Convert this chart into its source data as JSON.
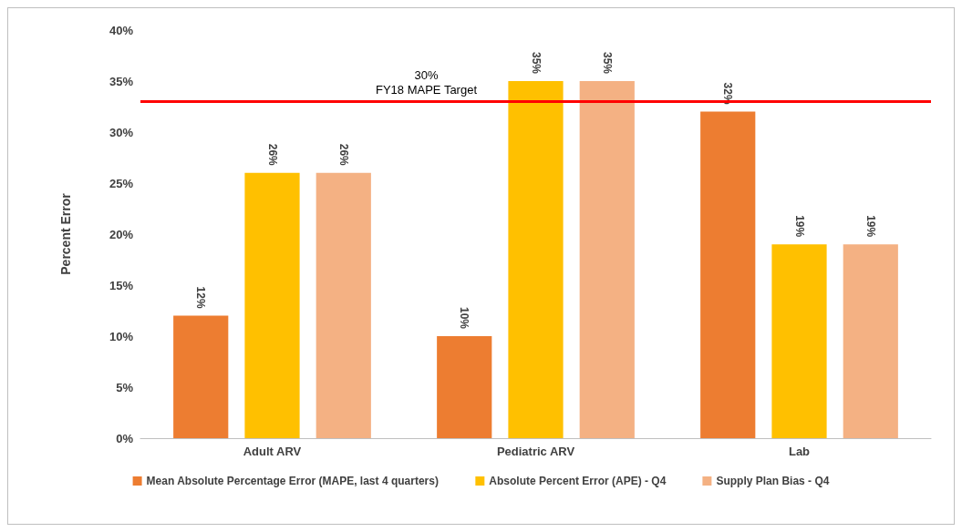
{
  "chart_data": {
    "type": "bar",
    "ylabel": "Percent Error",
    "categories": [
      "Adult ARV",
      "Pediatric ARV",
      "Lab"
    ],
    "series": [
      {
        "name": "Mean Absolute Percentage Error (MAPE, last 4 quarters)",
        "color": "#ed7d31",
        "values": [
          12,
          10,
          32
        ],
        "value_labels": [
          "12%",
          "10%",
          "32%"
        ]
      },
      {
        "name": "Absolute Percent Error (APE) - Q4",
        "color": "#ffc000",
        "values": [
          26,
          35,
          19
        ],
        "value_labels": [
          "26%",
          "35%",
          "19%"
        ]
      },
      {
        "name": "Supply Plan Bias - Q4",
        "color": "#f4b183",
        "values": [
          26,
          35,
          19
        ],
        "value_labels": [
          "26%",
          "35%",
          "19%"
        ]
      }
    ],
    "ylim": [
      0,
      40
    ],
    "yticks": [
      {
        "value": 0,
        "label": "0%"
      },
      {
        "value": 5,
        "label": "5%"
      },
      {
        "value": 10,
        "label": "10%"
      },
      {
        "value": 15,
        "label": "15%"
      },
      {
        "value": 20,
        "label": "20%"
      },
      {
        "value": 25,
        "label": "25%"
      },
      {
        "value": 30,
        "label": "30%"
      },
      {
        "value": 35,
        "label": "35%"
      },
      {
        "value": 40,
        "label": "40%"
      }
    ],
    "legend": "bottom",
    "grid": false,
    "ref_lines": [
      {
        "axis": "y",
        "value": 33,
        "label": "30%\nFY18 MAPE Target",
        "color": "#ff0000"
      }
    ]
  }
}
